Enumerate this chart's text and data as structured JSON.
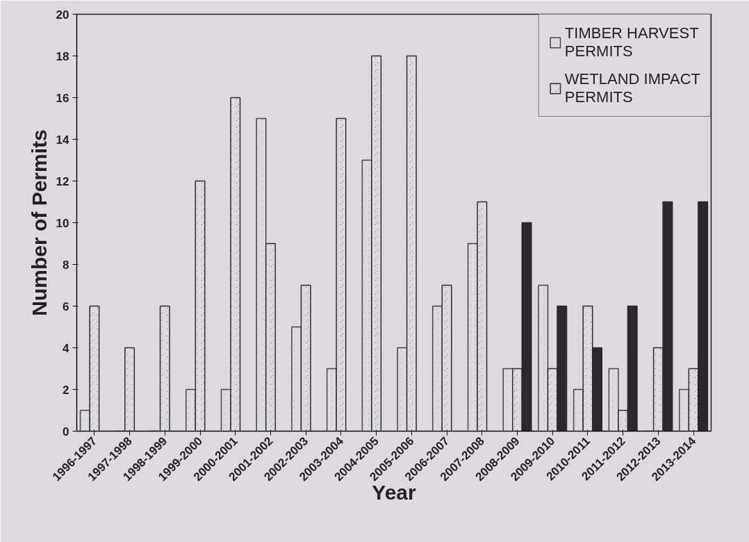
{
  "chart_data": {
    "type": "bar",
    "xlabel": "Year",
    "ylabel": "Number of Permits",
    "categories": [
      "1996-1997",
      "1997-1998",
      "1998-1999",
      "1999-2000",
      "2000-2001",
      "2001-2002",
      "2002-2003",
      "2003-2004",
      "2004-2005",
      "2005-2006",
      "2006-2007",
      "2007-2008",
      "2008-2009",
      "2009-2010",
      "2010-2011",
      "2011-2012",
      "2012-2013",
      "2013-2014"
    ],
    "series": [
      {
        "name": "TIMBER HARVEST PERMITS",
        "color": "#4a4246",
        "values": [
          1,
          0,
          0,
          2,
          2,
          15,
          5,
          3,
          13,
          4,
          6,
          9,
          3,
          7,
          2,
          3,
          0,
          2
        ]
      },
      {
        "name": "WETLAND IMPACT PERMITS",
        "color": "#332b2f",
        "values": [
          6,
          4,
          6,
          12,
          16,
          9,
          7,
          15,
          18,
          18,
          7,
          11,
          3,
          3,
          6,
          1,
          4,
          3
        ]
      },
      {
        "color": "#2e2729",
        "values": [
          null,
          null,
          null,
          null,
          null,
          null,
          null,
          null,
          null,
          null,
          null,
          null,
          10,
          6,
          4,
          6,
          11,
          11
        ]
      }
    ],
    "ylim": [
      0,
      20
    ],
    "yticks": [
      0,
      2,
      4,
      6,
      8,
      10,
      12,
      14,
      16,
      18,
      20
    ],
    "grid": false,
    "legend": "top right"
  }
}
